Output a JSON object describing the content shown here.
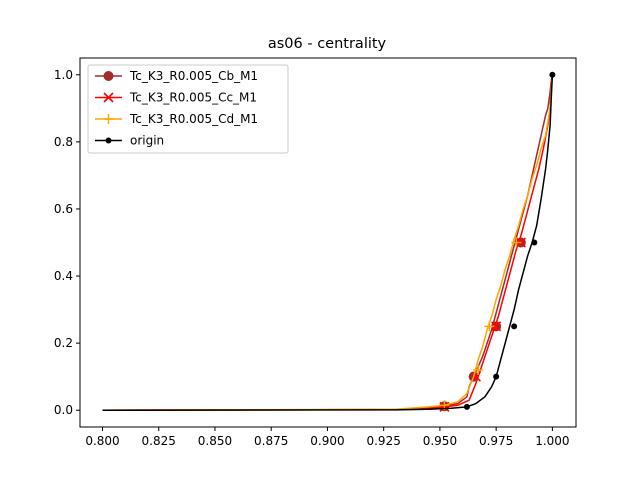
{
  "chart_data": {
    "type": "line",
    "title": "as06 - centrality",
    "xlabel": "",
    "ylabel": "",
    "xlim": [
      0.79,
      1.0105
    ],
    "ylim": [
      -0.05,
      1.05
    ],
    "xticks": [
      0.8,
      0.825,
      0.85,
      0.875,
      0.9,
      0.925,
      0.95,
      0.975,
      1.0
    ],
    "xtick_labels": [
      "0.800",
      "0.825",
      "0.850",
      "0.875",
      "0.900",
      "0.925",
      "0.950",
      "0.975",
      "1.000"
    ],
    "yticks": [
      0.0,
      0.2,
      0.4,
      0.6,
      0.8,
      1.0
    ],
    "ytick_labels": [
      "0.0",
      "0.2",
      "0.4",
      "0.6",
      "0.8",
      "1.0"
    ],
    "grid": false,
    "legend_position": "upper-left",
    "series": [
      {
        "name": "Tc_K3_R0.005_Cb_M1",
        "color": "#a52a2a",
        "marker": "circle",
        "x": [
          0.8,
          0.93,
          0.945,
          0.952,
          0.958,
          0.962,
          0.963,
          0.965,
          0.967,
          0.969,
          0.971,
          0.973,
          0.975,
          0.977,
          0.979,
          0.981,
          0.983,
          0.985,
          0.987,
          0.989,
          0.991,
          0.993,
          0.995,
          0.997,
          0.998,
          0.999,
          0.9995,
          1.0
        ],
        "y": [
          0.0,
          0.002,
          0.008,
          0.012,
          0.02,
          0.04,
          0.07,
          0.1,
          0.13,
          0.16,
          0.2,
          0.24,
          0.29,
          0.34,
          0.39,
          0.44,
          0.49,
          0.54,
          0.59,
          0.64,
          0.7,
          0.76,
          0.82,
          0.88,
          0.9,
          0.95,
          0.98,
          1.0
        ],
        "marker_points": [
          [
            0.952,
            0.012
          ],
          [
            0.965,
            0.1
          ],
          [
            0.975,
            0.25
          ],
          [
            0.986,
            0.5
          ]
        ]
      },
      {
        "name": "Tc_K3_R0.005_Cc_M1",
        "color": "#ff0000",
        "marker": "x",
        "x": [
          0.8,
          0.93,
          0.945,
          0.952,
          0.958,
          0.963,
          0.966,
          0.968,
          0.97,
          0.972,
          0.974,
          0.976,
          0.978,
          0.98,
          0.982,
          0.984,
          0.986,
          0.988,
          0.99,
          0.992,
          0.994,
          0.996,
          0.998,
          0.999,
          0.9995,
          1.0
        ],
        "y": [
          0.0,
          0.002,
          0.006,
          0.01,
          0.015,
          0.03,
          0.08,
          0.12,
          0.16,
          0.2,
          0.24,
          0.28,
          0.33,
          0.38,
          0.43,
          0.48,
          0.52,
          0.57,
          0.62,
          0.67,
          0.72,
          0.78,
          0.85,
          0.9,
          0.96,
          1.0
        ],
        "marker_points": [
          [
            0.952,
            0.01
          ],
          [
            0.966,
            0.1
          ],
          [
            0.975,
            0.25
          ],
          [
            0.986,
            0.5
          ]
        ]
      },
      {
        "name": "Tc_K3_R0.005_Cd_M1",
        "color": "#ffa500",
        "marker": "plus",
        "x": [
          0.8,
          0.93,
          0.945,
          0.952,
          0.958,
          0.962,
          0.965,
          0.967,
          0.969,
          0.971,
          0.973,
          0.975,
          0.977,
          0.979,
          0.981,
          0.983,
          0.985,
          0.987,
          0.989,
          0.991,
          0.993,
          0.995,
          0.997,
          0.998,
          0.999,
          0.9995,
          1.0
        ],
        "y": [
          0.0,
          0.003,
          0.01,
          0.015,
          0.025,
          0.05,
          0.1,
          0.15,
          0.19,
          0.24,
          0.28,
          0.33,
          0.37,
          0.42,
          0.46,
          0.51,
          0.55,
          0.6,
          0.64,
          0.69,
          0.73,
          0.78,
          0.82,
          0.86,
          0.9,
          0.95,
          1.0
        ],
        "marker_points": [
          [
            0.952,
            0.015
          ],
          [
            0.967,
            0.12
          ],
          [
            0.972,
            0.25
          ],
          [
            0.984,
            0.5
          ]
        ]
      },
      {
        "name": "origin",
        "color": "#000000",
        "marker": "dot",
        "x": [
          0.8,
          0.93,
          0.945,
          0.955,
          0.962,
          0.966,
          0.97,
          0.973,
          0.975,
          0.977,
          0.979,
          0.981,
          0.983,
          0.985,
          0.987,
          0.989,
          0.991,
          0.993,
          0.995,
          0.997,
          0.998,
          0.999,
          0.9995,
          1.0
        ],
        "y": [
          0.0,
          0.001,
          0.003,
          0.006,
          0.01,
          0.02,
          0.04,
          0.07,
          0.1,
          0.15,
          0.2,
          0.25,
          0.3,
          0.36,
          0.41,
          0.46,
          0.5,
          0.55,
          0.63,
          0.72,
          0.78,
          0.85,
          0.93,
          1.0
        ],
        "marker_points": [
          [
            0.962,
            0.01
          ],
          [
            0.975,
            0.1
          ],
          [
            0.983,
            0.25
          ],
          [
            0.992,
            0.5
          ],
          [
            1.0,
            1.0
          ]
        ]
      }
    ]
  }
}
